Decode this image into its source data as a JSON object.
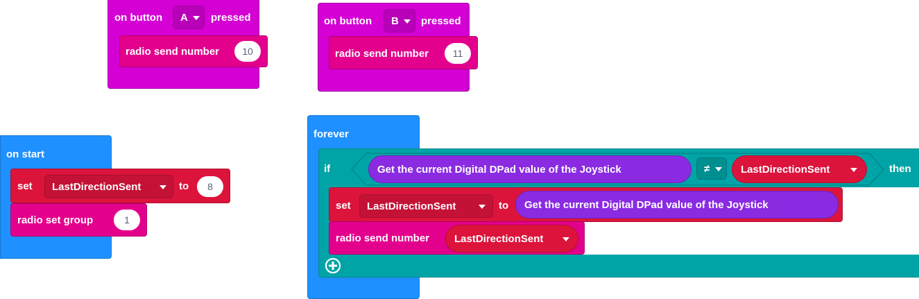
{
  "colors": {
    "input": "#d400d4",
    "radio": "#e3008c",
    "basic": "#1e90ff",
    "logic": "#00a4a6",
    "variables": "#dc143c",
    "joystick": "#8a2be2"
  },
  "button_a_block": {
    "label_on": "on button",
    "button": "A",
    "label_pressed": "pressed",
    "inner": {
      "label": "radio send number",
      "value": "10"
    }
  },
  "button_b_block": {
    "label_on": "on button",
    "button": "B",
    "label_pressed": "pressed",
    "inner": {
      "label": "radio send number",
      "value": "11"
    }
  },
  "on_start_block": {
    "label": "on start",
    "set": {
      "label": "set",
      "variable": "LastDirectionSent",
      "to": "to",
      "value": "8"
    },
    "group": {
      "label": "radio set group",
      "value": "1"
    }
  },
  "forever_block": {
    "label": "forever",
    "if": {
      "label": "if",
      "left": "Get the current Digital DPad value of the Joystick",
      "operator": "≠",
      "right": "LastDirectionSent",
      "then": "then"
    },
    "set": {
      "label": "set",
      "variable": "LastDirectionSent",
      "to": "to",
      "value": "Get the current Digital DPad value of the Joystick"
    },
    "send": {
      "label": "radio send number",
      "value": "LastDirectionSent"
    }
  }
}
